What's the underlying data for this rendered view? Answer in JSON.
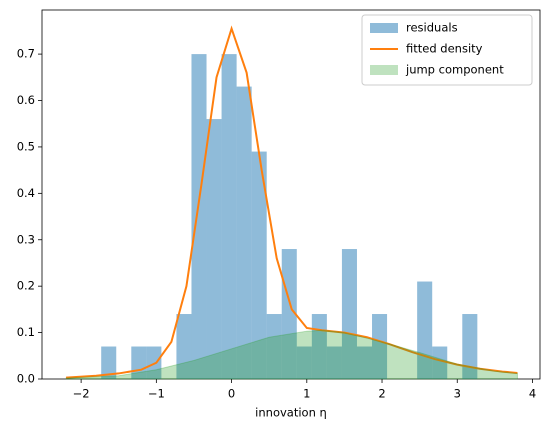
{
  "chart_data": {
    "type": "histogram",
    "xlabel": "innovation η",
    "xlim": [
      -2.52,
      4.1
    ],
    "ylim": [
      0,
      0.795
    ],
    "xticks": [
      {
        "value": -2,
        "label": "−2"
      },
      {
        "value": -1,
        "label": "−1"
      },
      0,
      1,
      2,
      3,
      4
    ],
    "yticks": [
      {
        "value": 0,
        "label": "0.0"
      },
      0.1,
      0.2,
      0.3,
      0.4,
      0.5,
      0.6,
      0.7
    ],
    "legend": "upper right",
    "series": [
      {
        "name": "residuals",
        "type": "histogram",
        "color": "#1f77b4",
        "opacity": 0.5,
        "bins": [
          -1.733,
          -1.533,
          -1.333,
          -1.133,
          -0.933,
          -0.733,
          -0.533,
          -0.333,
          -0.133,
          0.067,
          0.267,
          0.467,
          0.667,
          0.867,
          1.067,
          1.267,
          1.467,
          1.667,
          1.867,
          2.067,
          2.267,
          2.467,
          2.667,
          2.867,
          3.067,
          3.267
        ],
        "values": [
          0.07,
          0,
          0.07,
          0.07,
          0,
          0.14,
          0.7,
          0.56,
          0.7,
          0.63,
          0.49,
          0.14,
          0.28,
          0.07,
          0.14,
          0.07,
          0.28,
          0.07,
          0.14,
          0,
          0,
          0.21,
          0.07,
          0,
          0.14
        ]
      },
      {
        "name": "fitted density",
        "type": "line",
        "color": "#ff7f0e",
        "x": [
          -2.2,
          -1.8,
          -1.5,
          -1.2,
          -1.0,
          -0.8,
          -0.6,
          -0.4,
          -0.2,
          0,
          0.2,
          0.4,
          0.6,
          0.8,
          1.0,
          1.2,
          1.5,
          1.8,
          2.1,
          2.4,
          2.7,
          3.0,
          3.3,
          3.6,
          3.8
        ],
        "values": [
          0.003,
          0.007,
          0.012,
          0.02,
          0.035,
          0.08,
          0.2,
          0.42,
          0.65,
          0.755,
          0.66,
          0.45,
          0.26,
          0.15,
          0.11,
          0.105,
          0.1,
          0.09,
          0.075,
          0.058,
          0.043,
          0.031,
          0.022,
          0.016,
          0.013
        ]
      },
      {
        "name": "jump component",
        "type": "area",
        "color": "#2ca02c",
        "opacity": 0.3,
        "x": [
          -2.2,
          -1.5,
          -1.0,
          -0.5,
          0,
          0.5,
          1.0,
          1.2,
          1.5,
          2.0,
          2.5,
          3.0,
          3.5,
          3.8
        ],
        "values": [
          0.002,
          0.007,
          0.02,
          0.04,
          0.065,
          0.09,
          0.103,
          0.105,
          0.1,
          0.08,
          0.057,
          0.032,
          0.017,
          0.012
        ]
      }
    ]
  }
}
